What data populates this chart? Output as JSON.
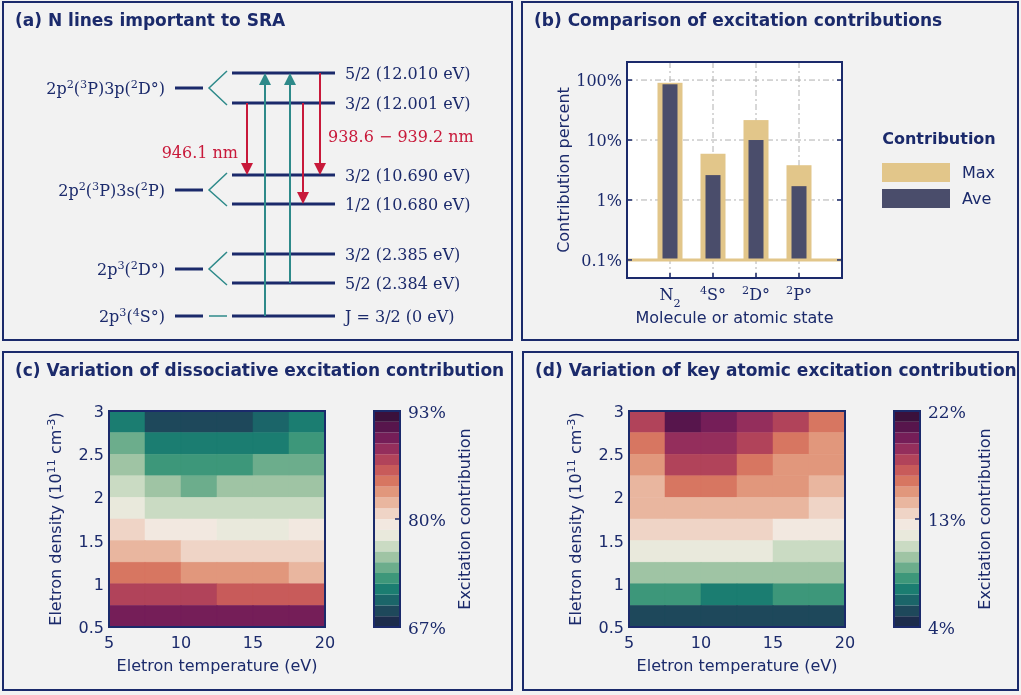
{
  "chart_data": [
    {
      "type": "other",
      "title": "(a) N lines important to SRA",
      "annotations": [
        "2p$^{2}$($^{3}$P)3p($^{2}$D°)",
        "2p$^{2}$($^{3}$P)3s($^{2}$P)",
        "2p$^{3}$($^{2}$D°)",
        "2p$^{3}$($^{4}$S°)",
        "5/2 (12.010 eV)",
        "3/2 (12.001 eV)",
        "3/2 (10.690 eV)",
        "1/2 (10.680 eV)",
        "3/2 (2.385 eV)",
        "5/2 (2.384 eV)",
        "J = 3/2 (0 eV)",
        "946.1 nm",
        "938.6 − 939.2 nm"
      ]
    },
    {
      "type": "bar",
      "title": "(b) Comparison of excitation contributions",
      "xlabel": "Molecule or atomic state",
      "ylabel": "Contribution percent",
      "categories": [
        "N$_{2}$",
        "$^{4}$S°",
        "$^{2}$D°",
        "$^{2}$P°"
      ],
      "series": [
        {
          "name": "Max",
          "color": "#e2c68a",
          "base": [
            0.1,
            0.1,
            0.1,
            0.1
          ],
          "values": [
            89.9,
            5.8,
            21.4,
            3.7
          ]
        },
        {
          "name": "Ave",
          "color": "#4a4d6b",
          "base": [
            0.1,
            0.1,
            0.1,
            0.1
          ],
          "values": [
            84.9,
            2.5,
            9.9,
            1.6
          ]
        }
      ],
      "log": true,
      "ylim": [
        0.05,
        200
      ],
      "yticks": [
        {
          "value": 0.1,
          "label": "0.1%"
        },
        {
          "value": 1,
          "label": "1%"
        },
        {
          "value": 10,
          "label": "10%"
        },
        {
          "value": 100,
          "label": "100%"
        }
      ],
      "grid": true,
      "legend": "right",
      "legend_title": "Contribution",
      "ref_lines": [
        {
          "axis": "y",
          "value": 0.1,
          "color": "#e2c68a"
        }
      ]
    },
    {
      "type": "heatmap",
      "title": "(c) Variation of dissociative excitation contribution",
      "xlabel": "Eletron temperature (eV)",
      "ylabel": "Eletron density (10$^{11}$ cm$^{-3}$)",
      "clabel": "Excitation contribution",
      "x": [
        6.25,
        8.75,
        11.25,
        13.75,
        16.25,
        18.75
      ],
      "y": [
        2.875,
        2.625,
        2.375,
        2.125,
        1.875,
        1.625,
        1.375,
        1.125,
        0.875,
        0.625
      ],
      "cells": [
        [
          72,
          69,
          69,
          69.5,
          70.5,
          71.5
        ],
        [
          74,
          71,
          71,
          71.5,
          72,
          73
        ],
        [
          75,
          73,
          72.5,
          73,
          73.5,
          74
        ],
        [
          77,
          75,
          74.5,
          75,
          75,
          75.5
        ],
        [
          78,
          77,
          76.5,
          76.5,
          77,
          77
        ],
        [
          80,
          79,
          79,
          78.5,
          78.5,
          79
        ],
        [
          82,
          81.5,
          81,
          81,
          80.5,
          80.5
        ],
        [
          84,
          84,
          83.5,
          83,
          83,
          82.5
        ],
        [
          86.5,
          86.5,
          86.5,
          86,
          85.5,
          85.5
        ],
        [
          90,
          90,
          90,
          90,
          89.5,
          89.5
        ]
      ],
      "xlim": [
        5,
        20
      ],
      "ylim": [
        0.5,
        3
      ],
      "xticks": [
        5,
        10,
        15,
        20
      ],
      "yticks": [
        0.5,
        1,
        1.5,
        2,
        2.5,
        3
      ],
      "clim": [
        67,
        93
      ],
      "cticks": [
        {
          "value": 67,
          "label": "67%"
        },
        {
          "value": 80,
          "label": "80%"
        },
        {
          "value": 93,
          "label": "93%"
        }
      ]
    },
    {
      "type": "heatmap",
      "title": "(d) Variation of key atomic excitation contribution",
      "xlabel": "Eletron temperature (eV)",
      "ylabel": "Eletron density (10$^{11}$ cm$^{-3}$)",
      "clabel": "Excitation contribution",
      "x": [
        6.25,
        8.75,
        11.25,
        13.75,
        16.25,
        18.75
      ],
      "y": [
        2.875,
        2.625,
        2.375,
        2.125,
        1.875,
        1.625,
        1.375,
        1.125,
        0.875,
        0.625
      ],
      "cells": [
        [
          17.5,
          20.5,
          20,
          19,
          18,
          16.5
        ],
        [
          16.5,
          19,
          19,
          18,
          16.5,
          15.5
        ],
        [
          15.5,
          17.5,
          17.5,
          16.5,
          15.5,
          15
        ],
        [
          14.5,
          16,
          16,
          15.5,
          15,
          14
        ],
        [
          14,
          14.5,
          14.5,
          14,
          14,
          13.5
        ],
        [
          13,
          13,
          13,
          13,
          12.5,
          12.5
        ],
        [
          11.5,
          11.5,
          11.5,
          11.5,
          11,
          11
        ],
        [
          10,
          10,
          9.5,
          9.5,
          9.5,
          10
        ],
        [
          8,
          8,
          7.5,
          7.5,
          8,
          8
        ],
        [
          5.5,
          5.5,
          5.5,
          5.5,
          5.5,
          5.5
        ]
      ],
      "xlim": [
        5,
        20
      ],
      "ylim": [
        0.5,
        3
      ],
      "xticks": [
        5,
        10,
        15,
        20
      ],
      "yticks": [
        0.5,
        1,
        1.5,
        2,
        2.5,
        3
      ],
      "clim": [
        4,
        22
      ],
      "cticks": [
        {
          "value": 4,
          "label": "4%"
        },
        {
          "value": 13,
          "label": "13%"
        },
        {
          "value": 22,
          "label": "22%"
        }
      ]
    }
  ]
}
